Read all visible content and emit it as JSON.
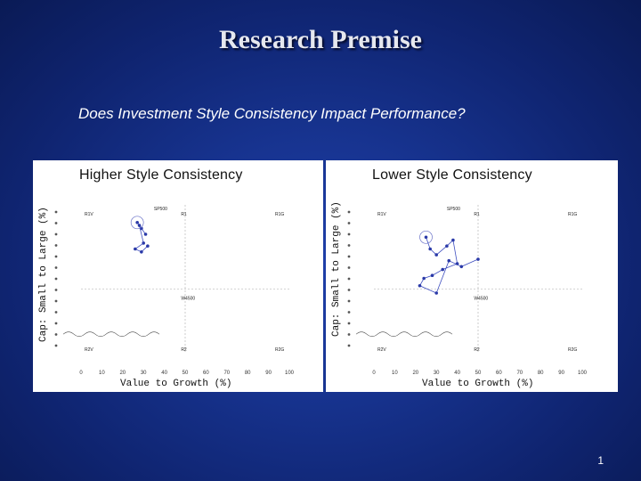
{
  "slide": {
    "title": "Research Premise",
    "subtitle": "Does Investment Style Consistency Impact Performance?",
    "page_number": "1"
  },
  "left_panel": {
    "title": "Higher Style Consistency",
    "ylabel": "Cap: Small to Large (%)",
    "xlabel": "Value to Growth (%)"
  },
  "right_panel": {
    "title": "Lower Style Consistency",
    "ylabel": "Cap: Small to Large (%)",
    "xlabel": "Value to Growth (%)"
  },
  "chart_data": [
    {
      "type": "scatter",
      "title": "Higher Style Consistency",
      "xlabel": "Value to Growth (%)",
      "ylabel": "Cap: Small to Large (%)",
      "xlim": [
        0,
        100
      ],
      "x_ticks": [
        "0",
        "10",
        "20",
        "30",
        "40",
        "50",
        "60",
        "70",
        "80",
        "90",
        "100"
      ],
      "corner_labels": [
        "R1V",
        "SP500",
        "R1",
        "R1G",
        "W4500",
        "R2V",
        "R2",
        "R2G"
      ],
      "x": [
        27,
        29,
        31,
        28,
        30,
        26,
        29,
        32
      ],
      "y": [
        88,
        84,
        80,
        86,
        74,
        70,
        68,
        72
      ]
    },
    {
      "type": "scatter",
      "title": "Lower Style Consistency",
      "xlabel": "Value to Growth (%)",
      "ylabel": "Cap: Small to Large (%)",
      "xlim": [
        0,
        100
      ],
      "x_ticks": [
        "0",
        "10",
        "20",
        "30",
        "40",
        "50",
        "60",
        "70",
        "80",
        "90",
        "100"
      ],
      "corner_labels": [
        "R1V",
        "SP500",
        "R1",
        "R1G",
        "W4500",
        "R2V",
        "R2",
        "R2G"
      ],
      "x": [
        25,
        27,
        30,
        35,
        38,
        40,
        33,
        28,
        24,
        22,
        30,
        36,
        42,
        50
      ],
      "y": [
        78,
        70,
        66,
        72,
        76,
        60,
        56,
        52,
        50,
        45,
        40,
        62,
        58,
        63
      ]
    }
  ]
}
